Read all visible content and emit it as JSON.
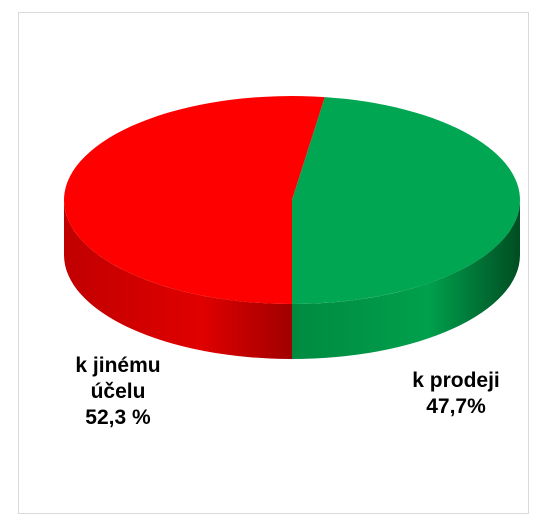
{
  "chart_data": {
    "type": "pie",
    "categories": [
      "k jinému účelu",
      "k prodeji"
    ],
    "values": [
      52.3,
      47.7
    ],
    "value_labels": [
      "52,3 %",
      "47,7%"
    ],
    "colors": [
      "#ff0000",
      "#00a651"
    ]
  }
}
